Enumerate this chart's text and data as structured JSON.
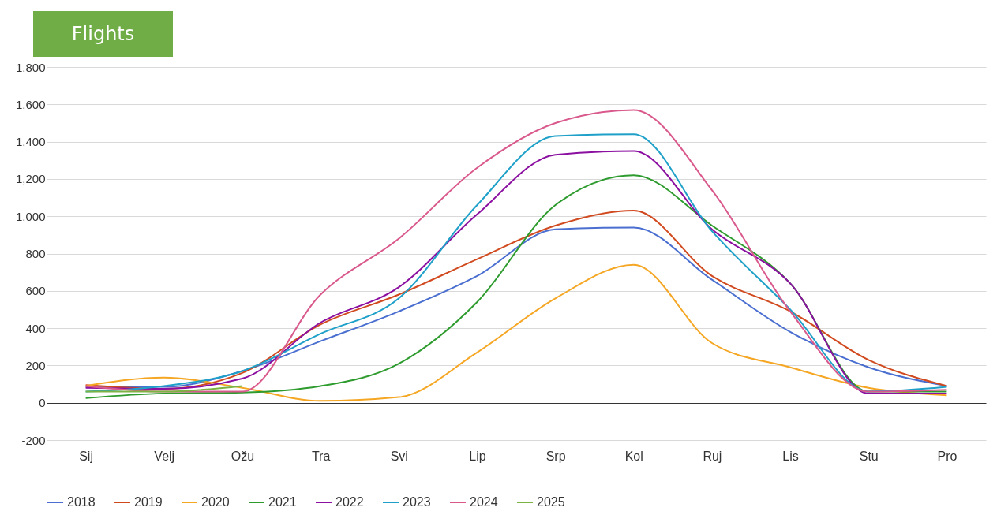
{
  "chart_data": {
    "type": "line",
    "title": "Flights",
    "categories": [
      "Sij",
      "Velj",
      "Ožu",
      "Tra",
      "Svi",
      "Lip",
      "Srp",
      "Kol",
      "Ruj",
      "Lis",
      "Stu",
      "Pro"
    ],
    "series": [
      {
        "name": "2018",
        "color": "#4a6fd0",
        "values": [
          85,
          85,
          170,
          330,
          490,
          680,
          930,
          940,
          660,
          380,
          190,
          90
        ]
      },
      {
        "name": "2019",
        "color": "#d14a1f",
        "values": [
          95,
          75,
          160,
          420,
          580,
          770,
          950,
          1030,
          680,
          490,
          230,
          90
        ]
      },
      {
        "name": "2020",
        "color": "#f5a623",
        "values": [
          90,
          135,
          80,
          10,
          30,
          270,
          560,
          740,
          320,
          190,
          80,
          40
        ]
      },
      {
        "name": "2021",
        "color": "#2e9b2e",
        "values": [
          25,
          50,
          55,
          90,
          210,
          540,
          1060,
          1220,
          950,
          640,
          60,
          60
        ]
      },
      {
        "name": "2022",
        "color": "#8b0fa0",
        "values": [
          80,
          75,
          130,
          430,
          620,
          1010,
          1330,
          1350,
          930,
          640,
          50,
          50
        ]
      },
      {
        "name": "2023",
        "color": "#1ea0c8",
        "values": [
          60,
          90,
          170,
          370,
          560,
          1060,
          1430,
          1440,
          920,
          500,
          60,
          85
        ]
      },
      {
        "name": "2024",
        "color": "#d9598c",
        "values": [
          90,
          60,
          60,
          580,
          880,
          1260,
          1500,
          1570,
          1140,
          490,
          60,
          70
        ]
      },
      {
        "name": "2025",
        "color": "#7cb342",
        "values": [
          60,
          60,
          90,
          null,
          null,
          null,
          null,
          null,
          null,
          null,
          null,
          null
        ]
      }
    ],
    "ylim": [
      -200,
      1800
    ],
    "yticks": [
      {
        "value": -200,
        "label": "-200"
      },
      0,
      200,
      400,
      600,
      800,
      {
        "value": 1000,
        "label": "1,000"
      },
      {
        "value": 1200,
        "label": "1,200"
      },
      {
        "value": 1400,
        "label": "1,400"
      },
      {
        "value": 1600,
        "label": "1,600"
      },
      {
        "value": 1800,
        "label": "1,800"
      }
    ],
    "grid": "y",
    "legend": "bottom",
    "marker": "none",
    "line_style": "solid"
  }
}
